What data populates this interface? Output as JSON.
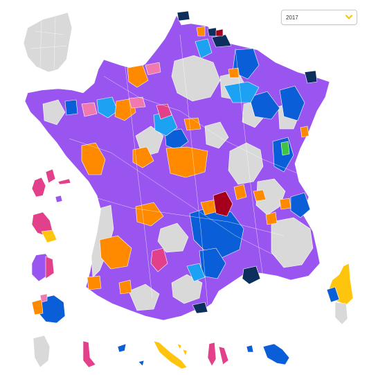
{
  "selector": {
    "year": "2017",
    "accent": "#f5c400"
  },
  "colors": {
    "purple": "#9a55f0",
    "grey": "#d9d9d9",
    "orange": "#ff8a00",
    "blue": "#0a5fd8",
    "light_blue": "#1da1f2",
    "navy": "#0c2f5e",
    "pink": "#e2408a",
    "light_pink": "#f07ab0",
    "dark_red": "#a4001d",
    "green": "#3ec43e",
    "yellow": "#ffc50e"
  }
}
